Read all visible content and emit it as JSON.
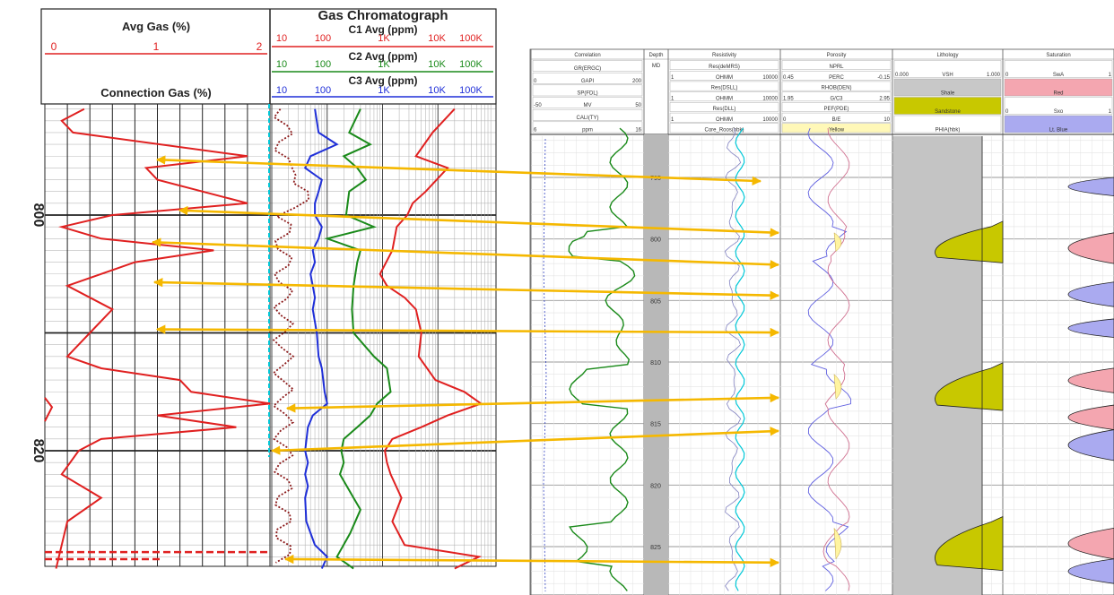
{
  "colors": {
    "red": "#e02020",
    "green": "#1a8a1a",
    "blue": "#1f2fd8",
    "dark_red": "#8b1a1a",
    "cyan": "#00c8d8",
    "arrow": "#f5b800",
    "shading": "#c8c800",
    "pink": "#f4a6b0",
    "lavender": "#aaaaf0"
  },
  "left_panel": {
    "avg_gas": {
      "title": "Avg Gas (%)",
      "scale_min": "0",
      "scale_mid": "1",
      "scale_max": "2"
    },
    "connection_gas": {
      "title": "Connection Gas (%)"
    },
    "chromatograph": {
      "title": "Gas Chromatograph",
      "scale": [
        "10",
        "100",
        "1K",
        "10K",
        "100K"
      ],
      "curves": [
        {
          "name": "C1 Avg (ppm)",
          "color": "#e02020"
        },
        {
          "name": "C2 Avg (ppm)",
          "color": "#1a8a1a"
        },
        {
          "name": "C3 Avg (ppm)",
          "color": "#1f2fd8"
        }
      ]
    },
    "depth_labels": [
      {
        "depth": 800,
        "label": "800"
      },
      {
        "depth": 820,
        "label": "820"
      }
    ]
  },
  "right_panel": {
    "tracks": {
      "correlation": {
        "title": "Correlation",
        "rows": [
          {
            "name": "GR(ERGC)",
            "min": "",
            "max": ""
          },
          {
            "name": "GAPI",
            "min": "0",
            "max": "200"
          },
          {
            "name": "SP(FDL)",
            "min": "",
            "max": ""
          },
          {
            "name": "MV",
            "min": "-50",
            "max": "50"
          },
          {
            "name": "CALI(TY)",
            "min": "",
            "max": ""
          },
          {
            "name": "ppm",
            "min": "6",
            "max": "16"
          }
        ]
      },
      "depth": {
        "title": "Depth",
        "unit": "MD"
      },
      "resistivity": {
        "title": "Resistivity",
        "rows": [
          {
            "name": "Res(deMRS)",
            "min": "",
            "max": ""
          },
          {
            "name": "OHMM",
            "min": "1",
            "max": "10000"
          },
          {
            "name": "Res(DSLL)",
            "min": "",
            "max": ""
          },
          {
            "name": "OHMM",
            "min": "1",
            "max": "10000"
          },
          {
            "name": "Res(DLL)",
            "min": "",
            "max": ""
          },
          {
            "name": "OHMM",
            "min": "1",
            "max": "10000"
          },
          {
            "name": "Core_Roos(hbk)",
            "min": "",
            "max": ""
          }
        ]
      },
      "porosity": {
        "title": "Porosity",
        "rows": [
          {
            "name": "NPRL",
            "min": "",
            "max": ""
          },
          {
            "name": "PERC",
            "min": "0.45",
            "max": "-0.15"
          },
          {
            "name": "RHOB(DEN)",
            "min": "",
            "max": ""
          },
          {
            "name": "G/C3",
            "min": "1.95",
            "max": "2.95"
          },
          {
            "name": "PEF(PDE)",
            "min": "",
            "max": ""
          },
          {
            "name": "B/E",
            "min": "0",
            "max": "10"
          },
          {
            "name": "Yellow",
            "min": "",
            "max": ""
          }
        ]
      },
      "lithology": {
        "title": "Lithology",
        "rows": [
          {
            "name": "VSH",
            "min": "0.000",
            "max": "1.000"
          },
          {
            "name": "Shale",
            "min": "",
            "max": ""
          },
          {
            "name": "Sandstone",
            "min": "",
            "max": ""
          },
          {
            "name": "PHIA(hbk)",
            "min": "",
            "max": ""
          }
        ]
      },
      "saturation": {
        "title": "Saturation",
        "rows": [
          {
            "name": "SwA",
            "min": "0",
            "max": "1"
          },
          {
            "name": "Red",
            "min": "",
            "max": ""
          },
          {
            "name": "Sxo",
            "min": "0",
            "max": "1"
          },
          {
            "name": "Lt. Blue",
            "min": "",
            "max": ""
          }
        ]
      }
    },
    "depth_ticks": [
      {
        "depth": 795,
        "label": "795"
      },
      {
        "depth": 800,
        "label": "800"
      },
      {
        "depth": 805,
        "label": "805"
      },
      {
        "depth": 810,
        "label": "810"
      },
      {
        "depth": 815,
        "label": "815"
      },
      {
        "depth": 820,
        "label": "820"
      },
      {
        "depth": 825,
        "label": "825"
      }
    ]
  },
  "correlation_arrows": [
    {
      "left_depth": 795.3,
      "right_depth": 795.3
    },
    {
      "left_depth": 799.6,
      "right_depth": 799.5
    },
    {
      "left_depth": 802.3,
      "right_depth": 802.1
    },
    {
      "left_depth": 805.7,
      "right_depth": 804.6
    },
    {
      "left_depth": 809.7,
      "right_depth": 807.6
    },
    {
      "left_depth": 816.4,
      "right_depth": 812.9
    },
    {
      "left_depth": 820.0,
      "right_depth": 815.6
    },
    {
      "left_depth": 829.2,
      "right_depth": 826.3
    }
  ],
  "chart_data": {
    "type": "line",
    "title": "Gas Chromatograph",
    "ylabel": "Depth",
    "ylim": [
      787,
      830
    ],
    "legend": [
      "C1 Avg (ppm)",
      "C2 Avg (ppm)",
      "C3 Avg (ppm)"
    ],
    "series": [
      {
        "name": "Avg Gas (%)",
        "x_scale": [
          0,
          2
        ],
        "points": [
          [
            791,
            0.35
          ],
          [
            792,
            0.15
          ],
          [
            793,
            0.25
          ],
          [
            795,
            1.8
          ],
          [
            796,
            0.9
          ],
          [
            797,
            1.0
          ],
          [
            799,
            1.8
          ],
          [
            800,
            0.6
          ],
          [
            801,
            0.15
          ],
          [
            802,
            0.5
          ],
          [
            803,
            1.5
          ],
          [
            804,
            0.8
          ],
          [
            806,
            0.2
          ],
          [
            808,
            0.6
          ],
          [
            810,
            0.4
          ],
          [
            812,
            0.2
          ],
          [
            813,
            0.5
          ],
          [
            814,
            1.2
          ],
          [
            815,
            1.3
          ],
          [
            816,
            2.0
          ],
          [
            817,
            1.0
          ],
          [
            818,
            1.7
          ],
          [
            819,
            0.5
          ],
          [
            820,
            0.3
          ],
          [
            822,
            0.15
          ],
          [
            824,
            0.5
          ],
          [
            826,
            0.2
          ],
          [
            828,
            0.15
          ],
          [
            830,
            0.1
          ]
        ]
      },
      {
        "name": "C1 Avg (ppm)",
        "x_scale": [
          10,
          100000
        ],
        "points": [
          [
            791,
            20000
          ],
          [
            793,
            8000
          ],
          [
            795,
            4000
          ],
          [
            796,
            15000
          ],
          [
            798,
            6000
          ],
          [
            799,
            3500
          ],
          [
            800,
            2800
          ],
          [
            801,
            1800
          ],
          [
            803,
            1500
          ],
          [
            805,
            900
          ],
          [
            806,
            1200
          ],
          [
            807,
            2500
          ],
          [
            808,
            4000
          ],
          [
            810,
            5000
          ],
          [
            812,
            4500
          ],
          [
            814,
            9000
          ],
          [
            815,
            30000
          ],
          [
            816,
            60000
          ],
          [
            817,
            15000
          ],
          [
            818,
            5000
          ],
          [
            819,
            1500
          ],
          [
            820,
            1100
          ],
          [
            821,
            1200
          ],
          [
            822,
            1400
          ],
          [
            824,
            2200
          ],
          [
            826,
            1500
          ],
          [
            828,
            2500
          ],
          [
            829,
            55000
          ],
          [
            830,
            20000
          ]
        ]
      },
      {
        "name": "C2 Avg (ppm)",
        "x_scale": [
          10,
          100000
        ],
        "points": [
          [
            791,
            400
          ],
          [
            793,
            250
          ],
          [
            794,
            600
          ],
          [
            795,
            200
          ],
          [
            796,
            350
          ],
          [
            797,
            500
          ],
          [
            798,
            250
          ],
          [
            800,
            220
          ],
          [
            801,
            700
          ],
          [
            802,
            100
          ],
          [
            803,
            400
          ],
          [
            804,
            350
          ],
          [
            806,
            300
          ],
          [
            808,
            280
          ],
          [
            810,
            300
          ],
          [
            812,
            700
          ],
          [
            813,
            1200
          ],
          [
            815,
            1400
          ],
          [
            816,
            800
          ],
          [
            817,
            600
          ],
          [
            818,
            350
          ],
          [
            819,
            200
          ],
          [
            820,
            180
          ],
          [
            821,
            200
          ],
          [
            822,
            170
          ],
          [
            824,
            300
          ],
          [
            825,
            400
          ],
          [
            827,
            260
          ],
          [
            829,
            150
          ],
          [
            830,
            300
          ]
        ]
      },
      {
        "name": "C3 Avg (ppm)",
        "x_scale": [
          10,
          100000
        ],
        "points": [
          [
            791,
            60
          ],
          [
            793,
            70
          ],
          [
            794,
            150
          ],
          [
            795,
            50
          ],
          [
            796,
            40
          ],
          [
            797,
            80
          ],
          [
            798,
            70
          ],
          [
            799,
            60
          ],
          [
            800,
            60
          ],
          [
            801,
            80
          ],
          [
            802,
            70
          ],
          [
            803,
            55
          ],
          [
            804,
            60
          ],
          [
            805,
            50
          ],
          [
            806,
            55
          ],
          [
            807,
            60
          ],
          [
            808,
            55
          ],
          [
            810,
            65
          ],
          [
            812,
            70
          ],
          [
            813,
            80
          ],
          [
            815,
            90
          ],
          [
            816,
            100
          ],
          [
            817,
            55
          ],
          [
            818,
            45
          ],
          [
            820,
            40
          ],
          [
            821,
            45
          ],
          [
            822,
            40
          ],
          [
            823,
            45
          ],
          [
            824,
            40
          ],
          [
            826,
            42
          ],
          [
            828,
            60
          ],
          [
            829,
            100
          ],
          [
            830,
            80
          ]
        ]
      }
    ]
  }
}
